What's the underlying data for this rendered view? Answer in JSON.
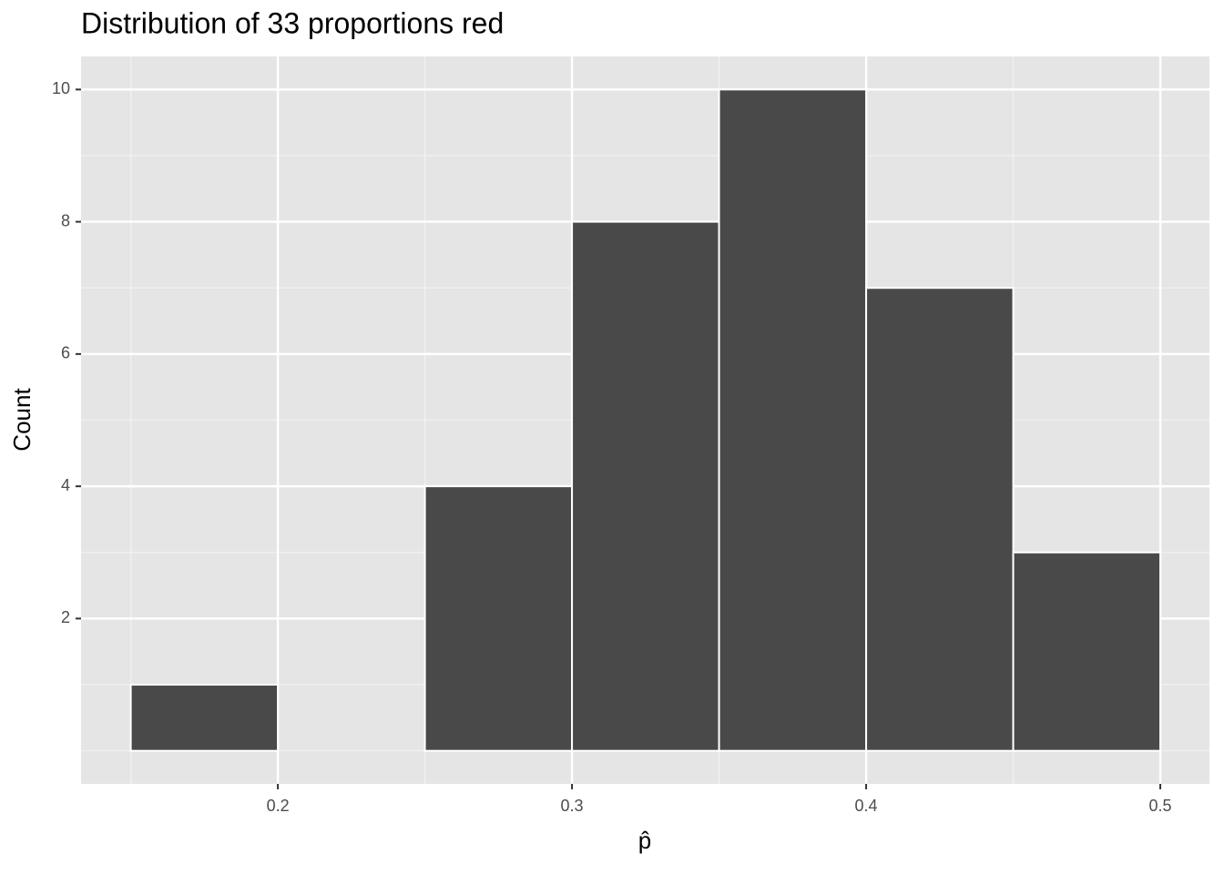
{
  "chart_data": {
    "type": "histogram",
    "title": "Distribution of 33 proportions red",
    "x_label": "p̂",
    "y_label": "Count",
    "bins": [
      0.15,
      0.2,
      0.25,
      0.3,
      0.35,
      0.4,
      0.45,
      0.5
    ],
    "values": [
      1,
      0,
      4,
      8,
      10,
      7,
      3
    ],
    "color": "#494949",
    "edge_color": "#ffffff",
    "xlim": [
      0.1331,
      0.5167
    ],
    "xticks": [
      0.2,
      0.3,
      0.4,
      0.5
    ],
    "x_minor_ticks": [
      0.15,
      0.25,
      0.35,
      0.45
    ],
    "ylim": [
      -0.5,
      10.5
    ],
    "yticks": [
      2,
      4,
      6,
      8,
      10
    ],
    "y_minor_ticks": [
      0,
      1,
      3,
      5,
      7,
      9
    ],
    "grid": true
  }
}
